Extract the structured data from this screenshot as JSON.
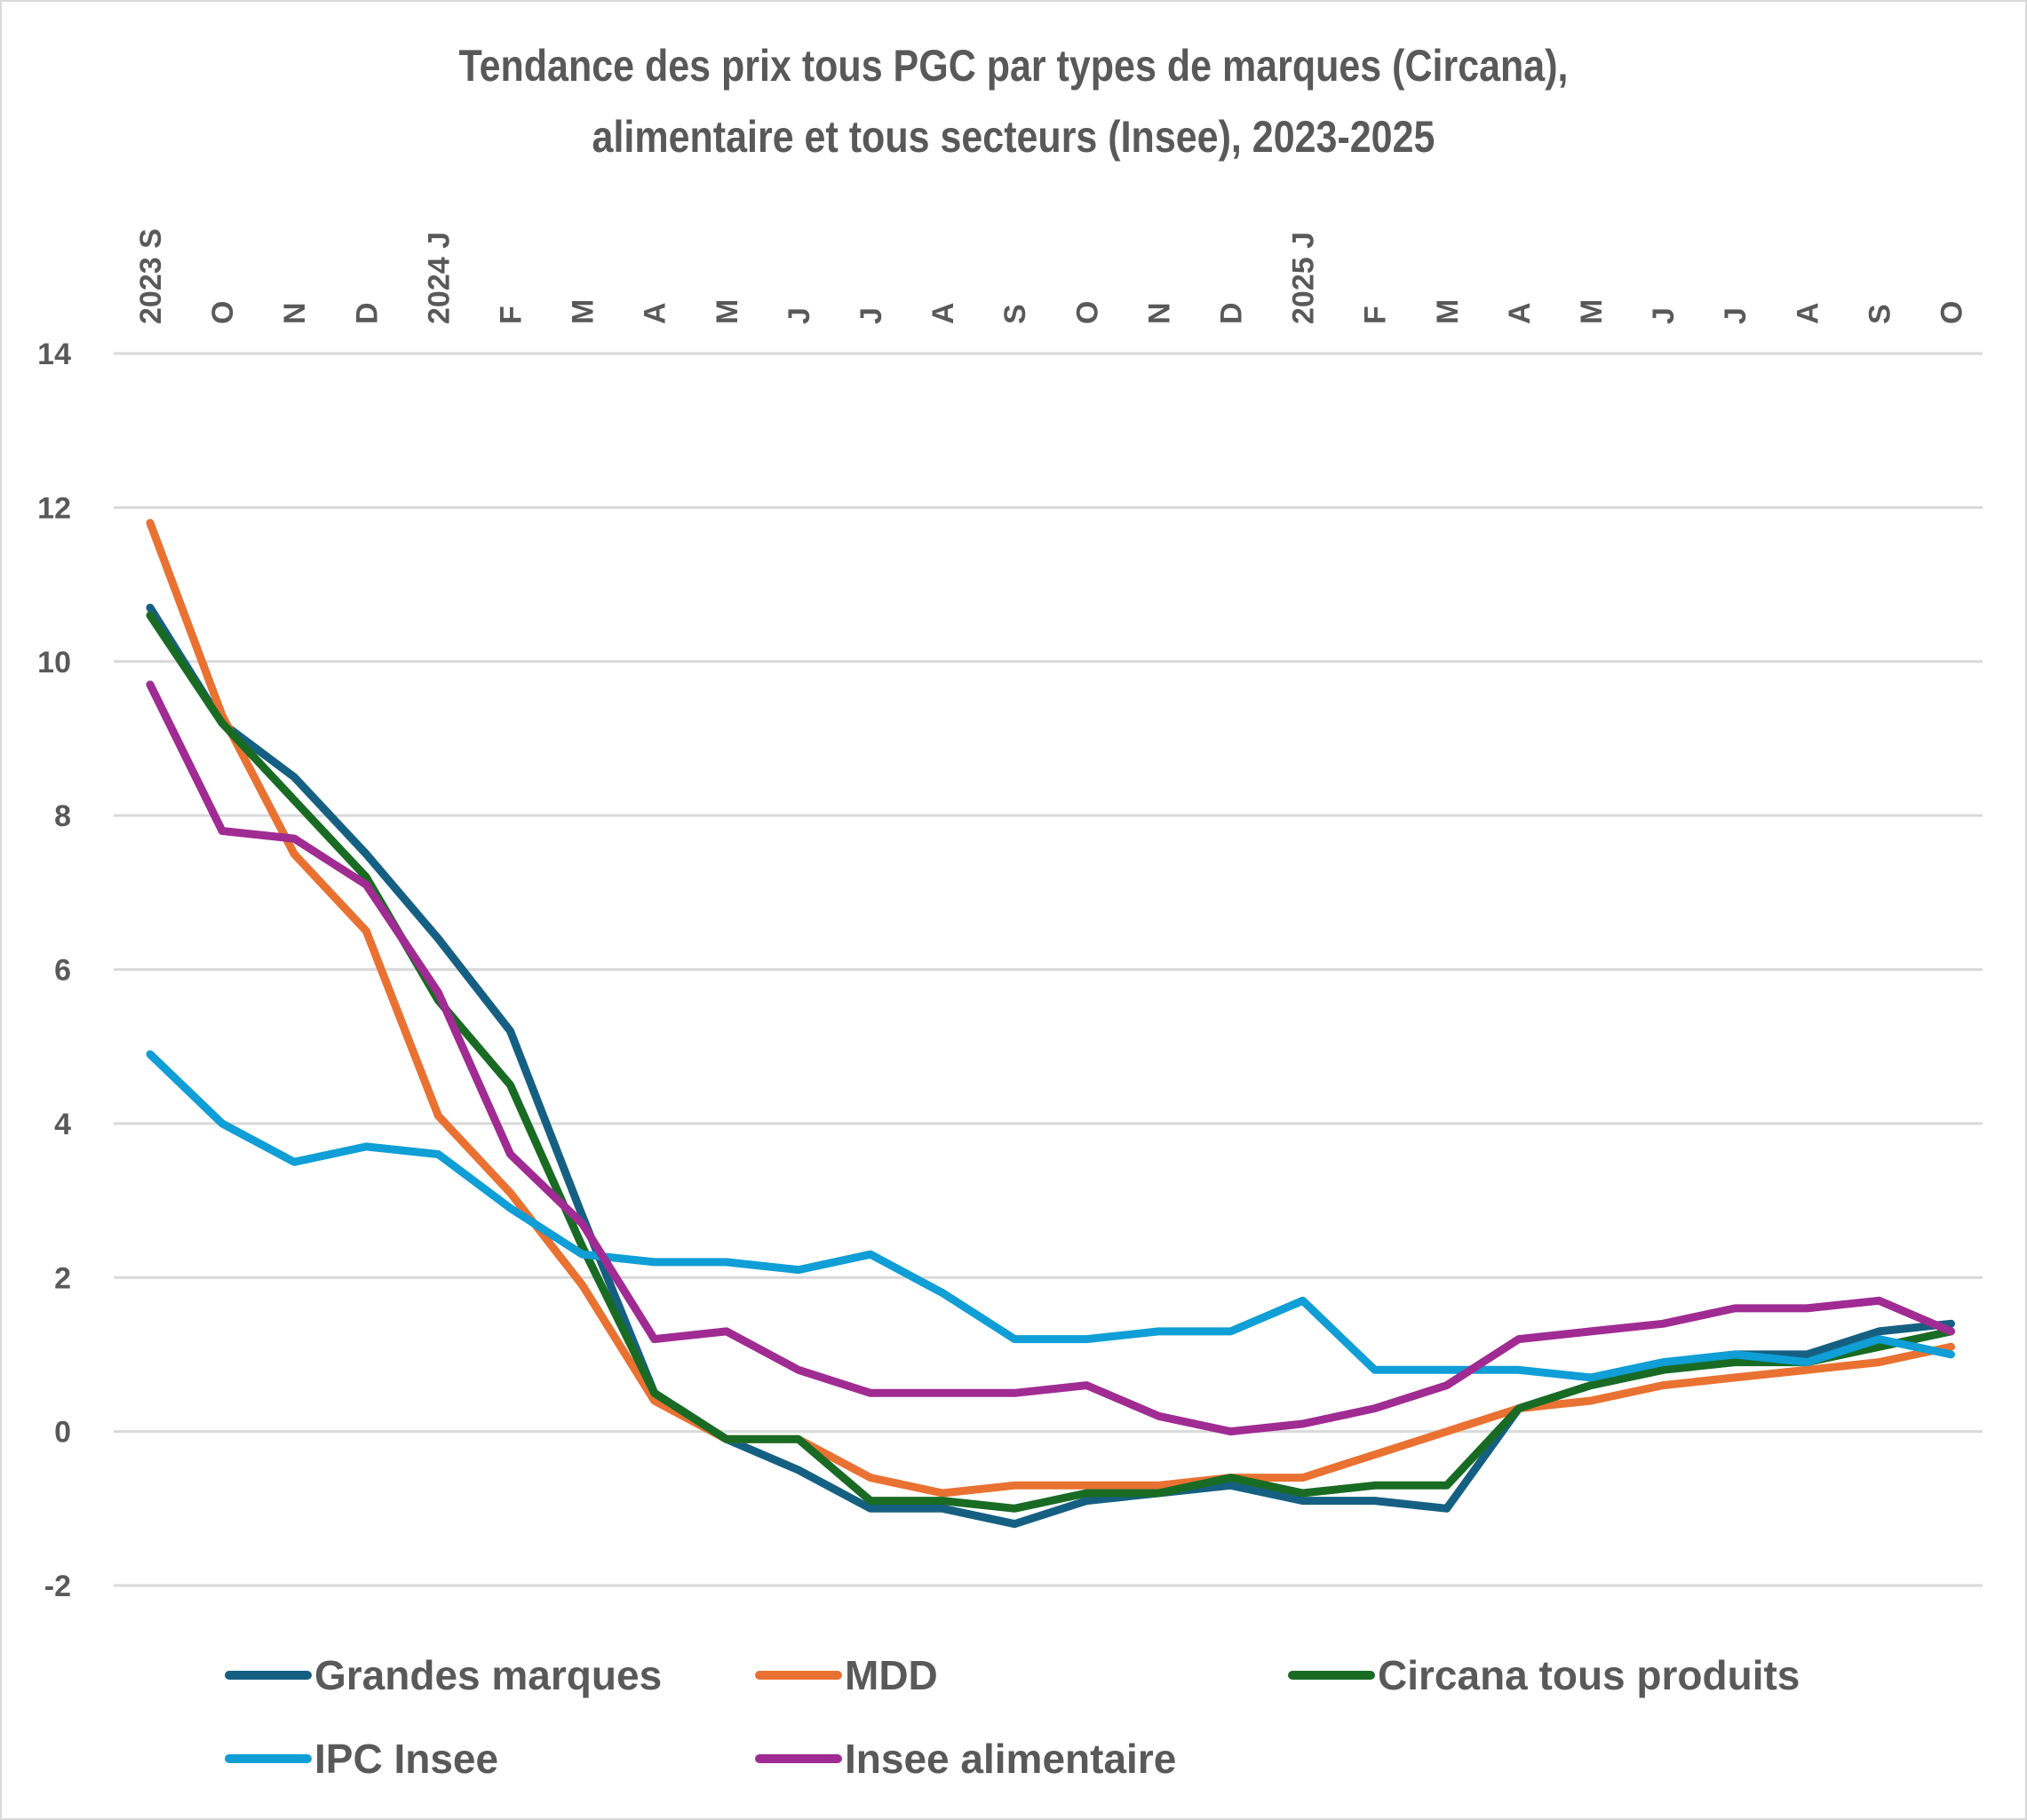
{
  "chart_data": {
    "type": "line",
    "title": "Tendance des prix tous PGC par types de marques (Circana), alimentaire et tous secteurs (Insee), 2023-2025",
    "title_lines": [
      "Tendance des prix tous PGC par types de marques (Circana),",
      "alimentaire et tous secteurs (Insee), 2023-2025"
    ],
    "xlabel": "",
    "ylabel": "",
    "categories": [
      "2023 S",
      "O",
      "N",
      "D",
      "2024 J",
      "F",
      "M",
      "A",
      "M",
      "J",
      "J",
      "A",
      "S",
      "O",
      "N",
      "D",
      "2025 J",
      "F",
      "M",
      "A",
      "M",
      "J",
      "J",
      "A",
      "S",
      "O"
    ],
    "ylim": [
      -2,
      14
    ],
    "yticks": [
      14,
      12,
      10,
      8,
      6,
      4,
      2,
      0,
      -2
    ],
    "ytick_labels": [
      "14",
      "12",
      "10",
      "8",
      "6",
      "4",
      "2",
      "0",
      "-2"
    ],
    "x_axis_position": "top",
    "x_tick_rotation": "vertical",
    "grid": true,
    "legend_position": "bottom",
    "series": [
      {
        "name": "Grandes marques",
        "color": "#156082",
        "values": [
          10.7,
          9.2,
          8.5,
          7.5,
          6.4,
          5.2,
          2.8,
          0.5,
          -0.1,
          -0.5,
          -1.0,
          -1.0,
          -1.2,
          -0.9,
          -0.8,
          -0.7,
          -0.9,
          -0.9,
          -1.0,
          0.3,
          0.6,
          0.8,
          1.0,
          1.0,
          1.3,
          1.4
        ]
      },
      {
        "name": "MDD",
        "color": "#E97132",
        "values": [
          11.8,
          9.3,
          7.5,
          6.5,
          4.1,
          3.1,
          1.9,
          0.4,
          -0.1,
          -0.1,
          -0.6,
          -0.8,
          -0.7,
          -0.7,
          -0.7,
          -0.6,
          -0.6,
          -0.3,
          0.0,
          0.3,
          0.4,
          0.6,
          0.7,
          0.8,
          0.9,
          1.1
        ]
      },
      {
        "name": "Circana tous produits",
        "color": "#196B24",
        "values": [
          10.6,
          9.2,
          8.2,
          7.2,
          5.6,
          4.5,
          2.4,
          0.5,
          -0.1,
          -0.1,
          -0.9,
          -0.9,
          -1.0,
          -0.8,
          -0.8,
          -0.6,
          -0.8,
          -0.7,
          -0.7,
          0.3,
          0.6,
          0.8,
          0.9,
          0.9,
          1.1,
          1.3
        ]
      },
      {
        "name": "IPC Insee",
        "color": "#0F9ED5",
        "values": [
          4.9,
          4.0,
          3.5,
          3.7,
          3.6,
          2.9,
          2.3,
          2.2,
          2.2,
          2.1,
          2.3,
          1.8,
          1.2,
          1.2,
          1.3,
          1.3,
          1.7,
          0.8,
          0.8,
          0.8,
          0.7,
          0.9,
          1.0,
          0.9,
          1.2,
          1.0
        ]
      },
      {
        "name": "Insee alimentaire",
        "color": "#A02B93",
        "values": [
          9.7,
          7.8,
          7.7,
          7.1,
          5.7,
          3.6,
          2.7,
          1.2,
          1.3,
          0.8,
          0.5,
          0.5,
          0.5,
          0.6,
          0.2,
          0.0,
          0.1,
          0.3,
          0.6,
          1.2,
          1.3,
          1.4,
          1.6,
          1.6,
          1.7,
          1.3
        ]
      }
    ],
    "legend": [
      {
        "label": "Grandes marques",
        "color": "#156082"
      },
      {
        "label": "MDD",
        "color": "#E97132"
      },
      {
        "label": "Circana tous produits",
        "color": "#196B24"
      },
      {
        "label": "IPC Insee",
        "color": "#0F9ED5"
      },
      {
        "label": "Insee alimentaire",
        "color": "#A02B93"
      }
    ]
  },
  "colors": {
    "text": "#595959",
    "grid": "#d9d9d9",
    "border": "#d9d9d9",
    "background": "#ffffff"
  }
}
